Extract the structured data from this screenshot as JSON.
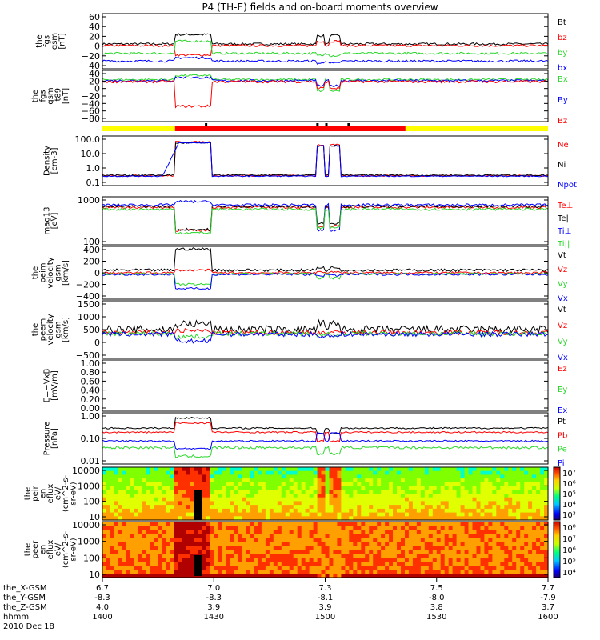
{
  "title": "P4 (TH-E) fields and on-board moments overview",
  "colors": {
    "black": "#000000",
    "red": "#ff0000",
    "green": "#2bd62b",
    "blue": "#0000ff",
    "yellow": "#ffff00"
  },
  "bottom_axis": {
    "rows": [
      {
        "label": "the_X-GSM",
        "values": [
          "6.7",
          "7.0",
          "7.3",
          "7.5",
          "7.7"
        ]
      },
      {
        "label": "the_Y-GSM",
        "values": [
          "-8.3",
          "-8.3",
          "-8.1",
          "-8.0",
          "-7.9"
        ]
      },
      {
        "label": "the_Z-GSM",
        "values": [
          "4.0",
          "3.9",
          "3.9",
          "3.8",
          "3.7"
        ]
      },
      {
        "label": "hhmm",
        "values": [
          "1400",
          "1430",
          "1500",
          "1530",
          "1600"
        ]
      }
    ],
    "date": "2010 Dec 18"
  },
  "chart_data": [
    {
      "type": "line",
      "id": "fgs",
      "ylabel": [
        "the",
        "fgs",
        "gsm",
        "[nT]"
      ],
      "yticks": [
        "60",
        "40",
        "20",
        "0",
        "−20",
        "−40"
      ],
      "series": [
        {
          "name": "Bt",
          "color": "#000000"
        },
        {
          "name": "bz",
          "color": "#ff0000"
        },
        {
          "name": "by",
          "color": "#2bd62b"
        },
        {
          "name": "bx",
          "color": "#0000ff"
        }
      ]
    },
    {
      "type": "line",
      "id": "fgs-t89",
      "ylabel": [
        "the",
        "fgs",
        "gsm",
        "-t89",
        "[nT]"
      ],
      "yticks": [
        "40",
        "20",
        "0",
        "−20",
        "−40",
        "−60",
        "−80"
      ],
      "series": [
        {
          "name": "Bx",
          "color": "#2bd62b"
        },
        {
          "name": "By",
          "color": "#0000ff"
        },
        {
          "name": "Bz",
          "color": "#ff0000"
        }
      ]
    },
    {
      "type": "line",
      "id": "density",
      "ylabel": [
        "Density",
        "[cm-3]"
      ],
      "yticks": [
        "100.0",
        "10.0",
        "1.0",
        "0.1"
      ],
      "log": true,
      "series": [
        {
          "name": "Ne",
          "color": "#ff0000"
        },
        {
          "name": "Ni",
          "color": "#000000"
        },
        {
          "name": "Npot",
          "color": "#0000ff"
        }
      ]
    },
    {
      "type": "line",
      "id": "temp",
      "ylabel": [
        "mag13",
        "[eV]"
      ],
      "yticks": [
        "1000",
        "100"
      ],
      "log": true,
      "series": [
        {
          "name": "Te⊥",
          "color": "#ff0000"
        },
        {
          "name": "Te||",
          "color": "#000000"
        },
        {
          "name": "Ti⊥",
          "color": "#0000ff"
        },
        {
          "name": "Ti||",
          "color": "#2bd62b"
        }
      ]
    },
    {
      "type": "line",
      "id": "peim",
      "ylabel": [
        "the",
        "peim",
        "velocity",
        "gsm",
        "[km/s]"
      ],
      "yticks": [
        "400",
        "200",
        "0",
        "−200",
        "−400"
      ],
      "series": [
        {
          "name": "Vt",
          "color": "#000000"
        },
        {
          "name": "Vz",
          "color": "#ff0000"
        },
        {
          "name": "Vy",
          "color": "#2bd62b"
        },
        {
          "name": "Vx",
          "color": "#0000ff"
        }
      ]
    },
    {
      "type": "line",
      "id": "peem",
      "ylabel": [
        "the",
        "peem",
        "velocity",
        "gsm",
        "[km/s]"
      ],
      "yticks": [
        "1500",
        "1000",
        "500",
        "0",
        "−500"
      ],
      "series": [
        {
          "name": "Vt",
          "color": "#000000"
        },
        {
          "name": "Vz",
          "color": "#ff0000"
        },
        {
          "name": "Vy",
          "color": "#2bd62b"
        },
        {
          "name": "Vx",
          "color": "#0000ff"
        }
      ]
    },
    {
      "type": "line",
      "id": "exb",
      "ylabel": [
        "E=−VxB",
        "[mV/m]"
      ],
      "yticks": [
        "1.00",
        "0.80",
        "0.60",
        "0.40",
        "0.20",
        "0.00"
      ],
      "series": [
        {
          "name": "Ez",
          "color": "#ff0000"
        },
        {
          "name": "Ey",
          "color": "#2bd62b"
        },
        {
          "name": "Ex",
          "color": "#0000ff"
        }
      ]
    },
    {
      "type": "line",
      "id": "pressure",
      "ylabel": [
        "Pressure",
        "[nPa]"
      ],
      "yticks": [
        "1.00",
        "0.10",
        "0.01"
      ],
      "log": true,
      "series": [
        {
          "name": "Pt",
          "color": "#000000"
        },
        {
          "name": "Pb",
          "color": "#ff0000"
        },
        {
          "name": "Pe",
          "color": "#2bd62b"
        },
        {
          "name": "Pi",
          "color": "#0000ff"
        }
      ]
    },
    {
      "type": "heatmap",
      "id": "peir",
      "ylabel": [
        "the",
        "peir",
        "en",
        "eflux",
        "eV/",
        "(cm^2-s-",
        "sr-eV)"
      ],
      "yticks": [
        "10000",
        "1000",
        "100",
        "10"
      ],
      "colorbar": [
        "10⁷",
        "10⁶",
        "10⁵",
        "10⁴",
        "10³"
      ]
    },
    {
      "type": "heatmap",
      "id": "peer",
      "ylabel": [
        "the",
        "peer",
        "en",
        "eflux",
        "eV/",
        "(cm^2-s-",
        "sr-eV)"
      ],
      "yticks": [
        "10000",
        "1000",
        "100",
        "10"
      ],
      "colorbar": [
        "10⁸",
        "10⁷",
        "10⁶",
        "10⁵",
        "10⁴"
      ]
    }
  ]
}
